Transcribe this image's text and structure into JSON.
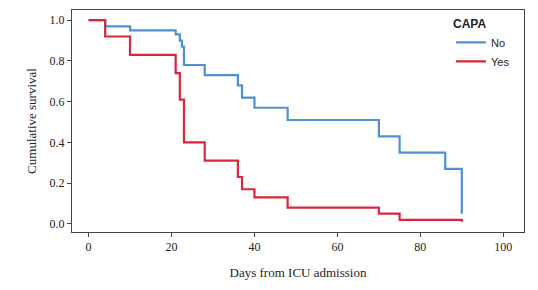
{
  "chart_data": {
    "type": "line",
    "line_style": "step",
    "x_label": "Days from ICU admission",
    "y_label": "Cumulative survival",
    "legend_title": "CAPA",
    "legend": "top right",
    "grid": false,
    "xlim": [
      -4,
      105
    ],
    "xticks": [
      0,
      20,
      40,
      60,
      80,
      100
    ],
    "ylim": [
      -0.04,
      1.05
    ],
    "yticks": [
      {
        "value": 0,
        "label": "0.0"
      },
      {
        "value": 0.2,
        "label": "0.2"
      },
      {
        "value": 0.4,
        "label": "0.4"
      },
      {
        "value": 0.6,
        "label": "0.6"
      },
      {
        "value": 0.8,
        "label": "0.8"
      },
      {
        "value": 1,
        "label": "1.0"
      }
    ],
    "series": [
      {
        "name": "No",
        "color": "#4f8fd6",
        "x": [
          0,
          4,
          10,
          21,
          22,
          22.5,
          23,
          28,
          36,
          37,
          40,
          48,
          70,
          75,
          86,
          90
        ],
        "values": [
          1.0,
          0.97,
          0.95,
          0.93,
          0.9,
          0.87,
          0.78,
          0.73,
          0.68,
          0.62,
          0.57,
          0.51,
          0.43,
          0.35,
          0.27,
          0.05
        ]
      },
      {
        "name": "Yes",
        "color": "#d9263a",
        "x": [
          0,
          4,
          10,
          21,
          22,
          23,
          28,
          36,
          37,
          40,
          48,
          70,
          75,
          90
        ],
        "values": [
          1.0,
          0.92,
          0.83,
          0.74,
          0.61,
          0.4,
          0.31,
          0.23,
          0.17,
          0.13,
          0.08,
          0.05,
          0.02,
          0.01
        ]
      }
    ]
  }
}
